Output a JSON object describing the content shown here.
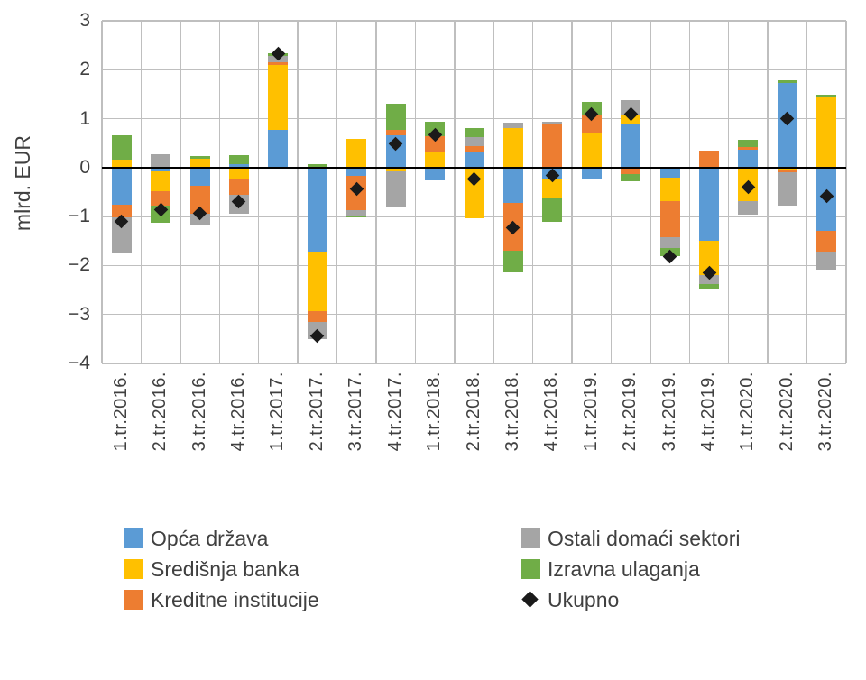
{
  "chart_data": {
    "type": "bar",
    "stacked": true,
    "title": "",
    "xlabel": "",
    "ylabel": "mlrd. EUR",
    "ylim": [
      -4,
      3
    ],
    "yticks": [
      3,
      2,
      1,
      0,
      -1,
      -2,
      -3,
      -4
    ],
    "grid": true,
    "legend_position": "bottom-two-columns",
    "axis_color": "#404040",
    "gridline_color": "#bfbfbf",
    "zero_line_color": "#000000",
    "categories": [
      "1.tr.2016.",
      "2.tr.2016.",
      "3.tr.2016.",
      "4.tr.2016.",
      "1.tr.2017.",
      "2.tr.2017.",
      "3.tr.2017.",
      "4.tr.2017.",
      "1.tr.2018.",
      "2.tr.2018.",
      "3.tr.2018.",
      "4.tr.2018.",
      "1.tr.2019.",
      "2.tr.2019.",
      "3.tr.2019.",
      "4.tr.2019.",
      "1.tr.2020.",
      "2.tr.2020.",
      "3.tr.2020."
    ],
    "series": [
      {
        "name": "Opća država",
        "color": "#5B9BD5",
        "render": "bar",
        "values": [
          -0.75,
          -0.07,
          -0.37,
          0.08,
          0.78,
          -1.71,
          -0.17,
          0.66,
          -0.26,
          0.31,
          -0.73,
          -0.23,
          -0.25,
          0.88,
          -0.2,
          -1.5,
          0.37,
          1.72,
          -1.3
        ]
      },
      {
        "name": "Središnja banka",
        "color": "#FFC000",
        "render": "bar",
        "values": [
          0.17,
          -0.41,
          0.19,
          -0.23,
          1.32,
          -1.22,
          0.58,
          -0.07,
          0.31,
          -1.04,
          0.8,
          -0.4,
          0.69,
          0.18,
          -0.49,
          -0.7,
          -0.69,
          -0.06,
          1.44
        ]
      },
      {
        "name": "Kreditne institucije",
        "color": "#ED7D31",
        "render": "bar",
        "values": [
          -0.27,
          -0.3,
          -0.58,
          -0.33,
          0.06,
          -0.23,
          -0.7,
          0.11,
          0.33,
          0.13,
          -0.97,
          0.88,
          0.37,
          -0.13,
          -0.73,
          0.34,
          0.05,
          -0.04,
          -0.42
        ]
      },
      {
        "name": "Ostali domaći sektori",
        "color": "#A5A5A5",
        "render": "bar",
        "values": [
          -0.74,
          0.28,
          -0.22,
          -0.39,
          0.12,
          -0.35,
          -0.11,
          -0.75,
          0.0,
          0.18,
          0.11,
          0.06,
          0.0,
          0.31,
          -0.22,
          -0.17,
          -0.27,
          -0.67,
          -0.36
        ]
      },
      {
        "name": "Izravna ulaganja",
        "color": "#70AD47",
        "render": "bar",
        "values": [
          0.49,
          -0.35,
          0.05,
          0.18,
          0.05,
          0.07,
          -0.03,
          0.53,
          0.29,
          0.18,
          -0.44,
          -0.47,
          0.29,
          -0.15,
          -0.17,
          -0.12,
          0.15,
          0.06,
          0.05
        ]
      },
      {
        "name": "Ukupno",
        "color": "#1A1A1A",
        "render": "diamond",
        "values": [
          -1.1,
          -0.85,
          -0.93,
          -0.69,
          2.33,
          -3.44,
          -0.43,
          0.48,
          0.67,
          -0.24,
          -1.23,
          -0.16,
          1.1,
          1.09,
          -1.81,
          -2.15,
          -0.39,
          1.01,
          -0.59
        ]
      }
    ]
  }
}
